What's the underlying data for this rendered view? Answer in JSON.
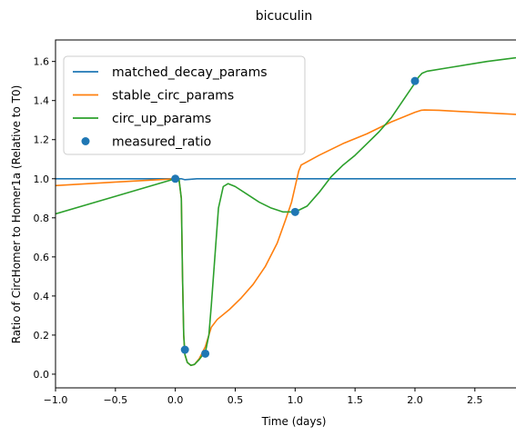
{
  "chart_data": {
    "type": "line",
    "title": "bicuculin",
    "xlabel": "Time (days)",
    "ylabel": "Ratio of CircHomer to Homer1a (Relative to T0)",
    "xlim": [
      -1.0,
      2.98
    ],
    "ylim": [
      -0.07,
      1.71
    ],
    "x_ticks": [
      -1.0,
      -0.5,
      0.0,
      0.5,
      1.0,
      1.5,
      2.0,
      2.5
    ],
    "x_tick_labels": [
      "−1.0",
      "−0.5",
      "0.0",
      "0.5",
      "1.0",
      "1.5",
      "2.0",
      "2.5"
    ],
    "y_ticks": [
      0.0,
      0.2,
      0.4,
      0.6,
      0.8,
      1.0,
      1.2,
      1.4,
      1.6
    ],
    "y_tick_labels": [
      "0.0",
      "0.2",
      "0.4",
      "0.6",
      "0.8",
      "1.0",
      "1.2",
      "1.4",
      "1.6"
    ],
    "grid": false,
    "legend_position": "top-left",
    "series": [
      {
        "name": "matched_decay_params",
        "color": "#1f77b4",
        "style": "line",
        "x": [
          -1.0,
          0.0,
          0.05,
          0.08,
          0.12,
          0.18,
          2.98
        ],
        "y": [
          1.0,
          1.0,
          1.0,
          0.995,
          0.997,
          1.0,
          1.0
        ]
      },
      {
        "name": "stable_circ_params",
        "color": "#ff7f0e",
        "style": "line",
        "x": [
          -1.0,
          -0.5,
          0.0,
          0.03,
          0.05,
          0.06,
          0.07,
          0.08,
          0.1,
          0.13,
          0.16,
          0.2,
          0.25,
          0.28,
          0.3,
          0.35,
          0.45,
          0.55,
          0.65,
          0.75,
          0.85,
          0.92,
          0.97,
          1.0,
          1.03,
          1.05,
          1.08,
          1.2,
          1.4,
          1.6,
          1.8,
          2.0,
          2.05,
          2.08,
          2.2,
          2.5,
          2.98
        ],
        "y": [
          0.965,
          0.983,
          1.0,
          1.0,
          0.9,
          0.5,
          0.2,
          0.1,
          0.06,
          0.045,
          0.05,
          0.08,
          0.14,
          0.2,
          0.24,
          0.28,
          0.33,
          0.39,
          0.46,
          0.55,
          0.67,
          0.79,
          0.88,
          0.96,
          1.04,
          1.07,
          1.08,
          1.12,
          1.18,
          1.23,
          1.29,
          1.34,
          1.35,
          1.352,
          1.35,
          1.34,
          1.325
        ]
      },
      {
        "name": "circ_up_params",
        "color": "#2ca02c",
        "style": "line",
        "x": [
          -1.0,
          -0.5,
          0.0,
          0.03,
          0.05,
          0.06,
          0.07,
          0.08,
          0.1,
          0.13,
          0.16,
          0.2,
          0.23,
          0.25,
          0.28,
          0.3,
          0.33,
          0.36,
          0.4,
          0.44,
          0.5,
          0.6,
          0.7,
          0.8,
          0.9,
          1.0,
          1.1,
          1.2,
          1.3,
          1.4,
          1.5,
          1.6,
          1.7,
          1.8,
          1.9,
          2.0,
          2.03,
          2.06,
          2.1,
          2.3,
          2.6,
          2.98
        ],
        "y": [
          0.82,
          0.91,
          1.0,
          1.0,
          0.9,
          0.5,
          0.2,
          0.1,
          0.06,
          0.045,
          0.05,
          0.075,
          0.1,
          0.11,
          0.2,
          0.35,
          0.6,
          0.85,
          0.96,
          0.975,
          0.96,
          0.92,
          0.88,
          0.85,
          0.83,
          0.83,
          0.86,
          0.93,
          1.01,
          1.07,
          1.12,
          1.18,
          1.24,
          1.31,
          1.4,
          1.49,
          1.52,
          1.54,
          1.55,
          1.57,
          1.6,
          1.63
        ]
      },
      {
        "name": "measured_ratio",
        "color": "#1f77b4",
        "style": "marker",
        "x": [
          0.0,
          0.08,
          0.25,
          1.0,
          2.0
        ],
        "y": [
          1.0,
          0.125,
          0.105,
          0.83,
          1.5
        ]
      }
    ]
  }
}
